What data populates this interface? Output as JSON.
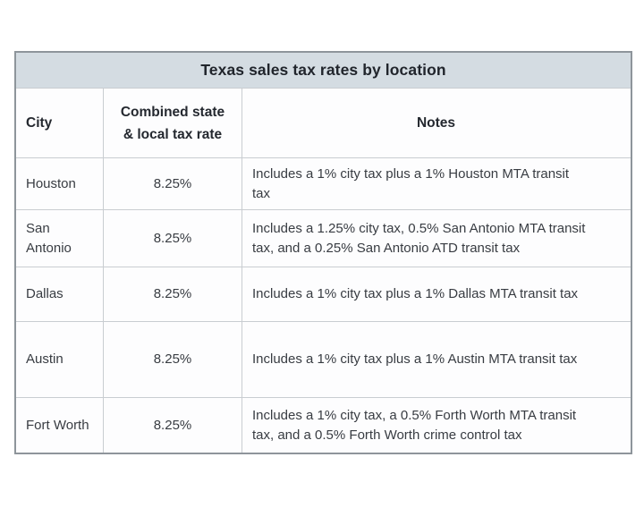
{
  "chart_data": {
    "type": "table",
    "title": "Texas sales tax rates by location",
    "columns": [
      "City",
      "Combined state & local tax rate",
      "Notes"
    ],
    "rows": [
      {
        "city": "Houston",
        "rate": "8.25%",
        "notes": "Includes a 1% city tax plus a 1% Houston MTA transit\ntax"
      },
      {
        "city": "San Antonio",
        "rate": "8.25%",
        "notes": "Includes a 1.25% city tax, 0.5% San Antonio MTA transit\ntax, and a 0.25% San Antonio ATD transit tax"
      },
      {
        "city": "Dallas",
        "rate": "8.25%",
        "notes": "Includes a 1% city tax plus a 1% Dallas MTA transit tax"
      },
      {
        "city": "Austin",
        "rate": "8.25%",
        "notes": "Includes a 1% city tax plus a 1% Austin MTA transit tax"
      },
      {
        "city": "Fort Worth",
        "rate": "8.25%",
        "notes": "Includes a 1% city tax, a 0.5% Forth Worth MTA transit\ntax, and a 0.5% Forth Worth crime control tax"
      }
    ],
    "layout": {
      "legend_position": "none",
      "grid": "on",
      "title_bar_background": "#d4dce2",
      "outer_border_color": "#8e959b",
      "grid_line_color": "#c9cdd1",
      "text_color": "#383c42",
      "title_text_color": "#21252c"
    }
  }
}
